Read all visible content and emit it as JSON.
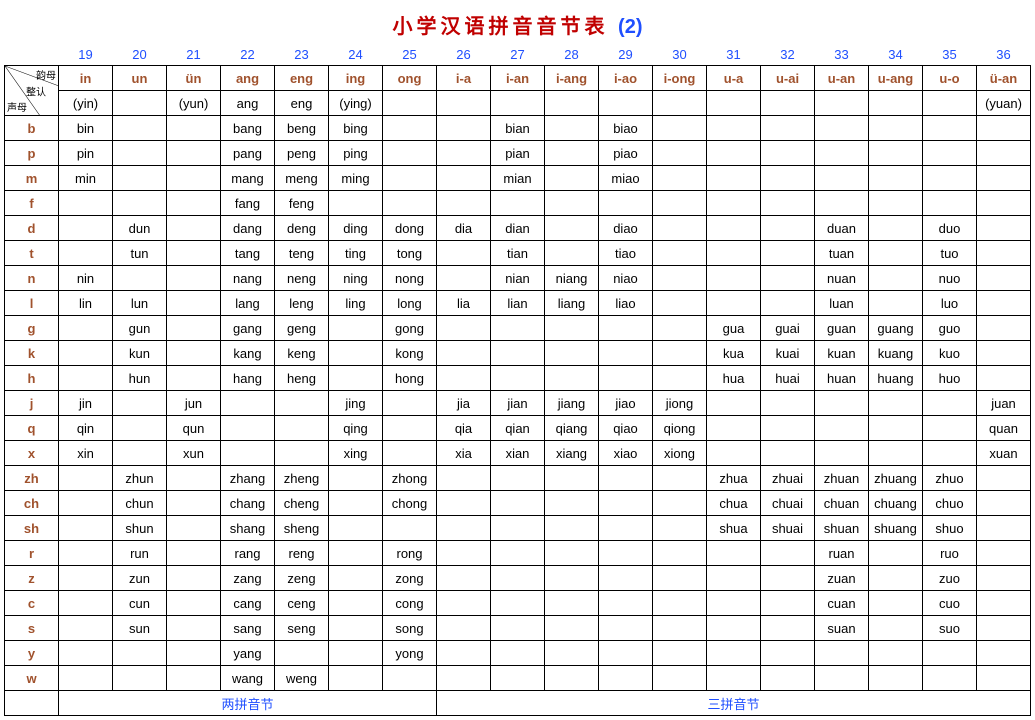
{
  "title_main": "小学汉语拼音音节表",
  "title_num": "(2)",
  "colors": {
    "title": "#c00000",
    "number": "#1f4fff",
    "header": "#a0522d",
    "border": "#000000",
    "background": "#ffffff",
    "text": "#000000"
  },
  "col_numbers": [
    "",
    "19",
    "20",
    "21",
    "22",
    "23",
    "24",
    "25",
    "26",
    "27",
    "28",
    "29",
    "30",
    "31",
    "32",
    "33",
    "34",
    "35",
    "36"
  ],
  "finals": [
    "in",
    "un",
    "ün",
    "ang",
    "eng",
    "ing",
    "ong",
    "i-a",
    "i-an",
    "i-ang",
    "i-ao",
    "i-ong",
    "u-a",
    "u-ai",
    "u-an",
    "u-ang",
    "u-o",
    "ü-an"
  ],
  "zero_row": [
    "(yin)",
    "",
    "(yun)",
    "ang",
    "eng",
    "(ying)",
    "",
    "",
    "",
    "",
    "",
    "",
    "",
    "",
    "",
    "",
    "",
    "(yuan)"
  ],
  "corner": {
    "tr": "韵母",
    "mr": "整认",
    "bl": "声母"
  },
  "initials": [
    "b",
    "p",
    "m",
    "f",
    "d",
    "t",
    "n",
    "l",
    "g",
    "k",
    "h",
    "j",
    "q",
    "x",
    "zh",
    "ch",
    "sh",
    "r",
    "z",
    "c",
    "s",
    "y",
    "w"
  ],
  "cells": {
    "b": [
      "bin",
      "",
      "",
      "bang",
      "beng",
      "bing",
      "",
      "",
      "bian",
      "",
      "biao",
      "",
      "",
      "",
      "",
      "",
      "",
      ""
    ],
    "p": [
      "pin",
      "",
      "",
      "pang",
      "peng",
      "ping",
      "",
      "",
      "pian",
      "",
      "piao",
      "",
      "",
      "",
      "",
      "",
      "",
      ""
    ],
    "m": [
      "min",
      "",
      "",
      "mang",
      "meng",
      "ming",
      "",
      "",
      "mian",
      "",
      "miao",
      "",
      "",
      "",
      "",
      "",
      "",
      ""
    ],
    "f": [
      "",
      "",
      "",
      "fang",
      "feng",
      "",
      "",
      "",
      "",
      "",
      "",
      "",
      "",
      "",
      "",
      "",
      "",
      ""
    ],
    "d": [
      "",
      "dun",
      "",
      "dang",
      "deng",
      "ding",
      "dong",
      "dia",
      "dian",
      "",
      "diao",
      "",
      "",
      "",
      "duan",
      "",
      "duo",
      ""
    ],
    "t": [
      "",
      "tun",
      "",
      "tang",
      "teng",
      "ting",
      "tong",
      "",
      "tian",
      "",
      "tiao",
      "",
      "",
      "",
      "tuan",
      "",
      "tuo",
      ""
    ],
    "n": [
      "nin",
      "",
      "",
      "nang",
      "neng",
      "ning",
      "nong",
      "",
      "nian",
      "niang",
      "niao",
      "",
      "",
      "",
      "nuan",
      "",
      "nuo",
      ""
    ],
    "l": [
      "lin",
      "lun",
      "",
      "lang",
      "leng",
      "ling",
      "long",
      "lia",
      "lian",
      "liang",
      "liao",
      "",
      "",
      "",
      "luan",
      "",
      "luo",
      ""
    ],
    "g": [
      "",
      "gun",
      "",
      "gang",
      "geng",
      "",
      "gong",
      "",
      "",
      "",
      "",
      "",
      "gua",
      "guai",
      "guan",
      "guang",
      "guo",
      ""
    ],
    "k": [
      "",
      "kun",
      "",
      "kang",
      "keng",
      "",
      "kong",
      "",
      "",
      "",
      "",
      "",
      "kua",
      "kuai",
      "kuan",
      "kuang",
      "kuo",
      ""
    ],
    "h": [
      "",
      "hun",
      "",
      "hang",
      "heng",
      "",
      "hong",
      "",
      "",
      "",
      "",
      "",
      "hua",
      "huai",
      "huan",
      "huang",
      "huo",
      ""
    ],
    "j": [
      "jin",
      "",
      "jun",
      "",
      "",
      "jing",
      "",
      "jia",
      "jian",
      "jiang",
      "jiao",
      "jiong",
      "",
      "",
      "",
      "",
      "",
      "juan"
    ],
    "q": [
      "qin",
      "",
      "qun",
      "",
      "",
      "qing",
      "",
      "qia",
      "qian",
      "qiang",
      "qiao",
      "qiong",
      "",
      "",
      "",
      "",
      "",
      "quan"
    ],
    "x": [
      "xin",
      "",
      "xun",
      "",
      "",
      "xing",
      "",
      "xia",
      "xian",
      "xiang",
      "xiao",
      "xiong",
      "",
      "",
      "",
      "",
      "",
      "xuan"
    ],
    "zh": [
      "",
      "zhun",
      "",
      "zhang",
      "zheng",
      "",
      "zhong",
      "",
      "",
      "",
      "",
      "",
      "zhua",
      "zhuai",
      "zhuan",
      "zhuang",
      "zhuo",
      ""
    ],
    "ch": [
      "",
      "chun",
      "",
      "chang",
      "cheng",
      "",
      "chong",
      "",
      "",
      "",
      "",
      "",
      "chua",
      "chuai",
      "chuan",
      "chuang",
      "chuo",
      ""
    ],
    "sh": [
      "",
      "shun",
      "",
      "shang",
      "sheng",
      "",
      "",
      "",
      "",
      "",
      "",
      "",
      "shua",
      "shuai",
      "shuan",
      "shuang",
      "shuo",
      ""
    ],
    "r": [
      "",
      "run",
      "",
      "rang",
      "reng",
      "",
      "rong",
      "",
      "",
      "",
      "",
      "",
      "",
      "",
      "ruan",
      "",
      "ruo",
      ""
    ],
    "z": [
      "",
      "zun",
      "",
      "zang",
      "zeng",
      "",
      "zong",
      "",
      "",
      "",
      "",
      "",
      "",
      "",
      "zuan",
      "",
      "zuo",
      ""
    ],
    "c": [
      "",
      "cun",
      "",
      "cang",
      "ceng",
      "",
      "cong",
      "",
      "",
      "",
      "",
      "",
      "",
      "",
      "cuan",
      "",
      "cuo",
      ""
    ],
    "s": [
      "",
      "sun",
      "",
      "sang",
      "seng",
      "",
      "song",
      "",
      "",
      "",
      "",
      "",
      "",
      "",
      "suan",
      "",
      "suo",
      ""
    ],
    "y": [
      "",
      "",
      "",
      "yang",
      "",
      "",
      "yong",
      "",
      "",
      "",
      "",
      "",
      "",
      "",
      "",
      "",
      "",
      ""
    ],
    "w": [
      "",
      "",
      "",
      "wang",
      "weng",
      "",
      "",
      "",
      "",
      "",
      "",
      "",
      "",
      "",
      "",
      "",
      "",
      ""
    ]
  },
  "bottom_row": {
    "skip_first": true,
    "group1_span": 7,
    "group1_label": "两拼音节",
    "group2_span": 11,
    "group2_label": "三拼音节"
  }
}
